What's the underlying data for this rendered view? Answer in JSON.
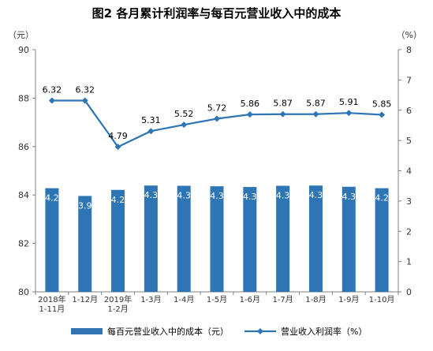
{
  "chart_data": {
    "title": "图2  各月累计利润率与每百元营业收入中的成本",
    "left_unit": "（元）",
    "right_unit": "（%）",
    "type": "bar+line",
    "categories": [
      [
        "2018年",
        "1-11月"
      ],
      [
        "1-12月"
      ],
      [
        "2019年",
        "1-2月"
      ],
      [
        "1-3月"
      ],
      [
        "1-4月"
      ],
      [
        "1-5月"
      ],
      [
        "1-6月"
      ],
      [
        "1-7月"
      ],
      [
        "1-8月"
      ],
      [
        "1-9月"
      ],
      [
        "1-10月"
      ]
    ],
    "series": [
      {
        "name": "每百元营业收入中的成本（元）",
        "type": "bar",
        "axis": "left",
        "color": "#2E75B6",
        "values": [
          84.28,
          83.96,
          84.21,
          84.39,
          84.38,
          84.36,
          84.33,
          84.38,
          84.39,
          84.34,
          84.28
        ]
      },
      {
        "name": "营业收入利润率（%）",
        "type": "line",
        "axis": "right",
        "color": "#2E75B6",
        "values": [
          6.32,
          6.32,
          4.79,
          5.31,
          5.52,
          5.72,
          5.86,
          5.87,
          5.87,
          5.91,
          5.85
        ]
      }
    ],
    "left_axis": {
      "min": 80,
      "max": 90,
      "ticks": [
        80,
        82,
        84,
        86,
        88,
        90
      ]
    },
    "right_axis": {
      "min": 0,
      "max": 8,
      "ticks": [
        0,
        1,
        2,
        3,
        4,
        5,
        6,
        7,
        8
      ]
    },
    "grid": false,
    "legend": "bottom"
  }
}
